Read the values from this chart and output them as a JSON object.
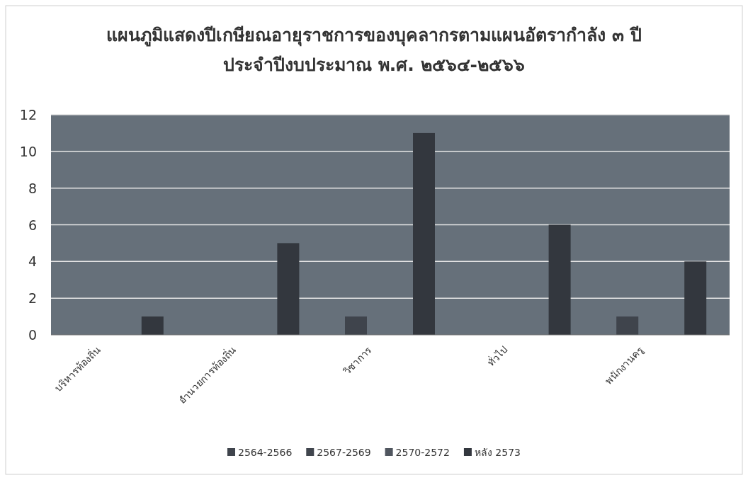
{
  "chart_data": {
    "type": "bar",
    "title": "แผนภูมิแสดงปีเกษียณอายุราชการของบุคลากรตามแผนอัตรากำลัง ๓ ปี ประจำปีงบประมาณ พ.ศ. ๒๕๖๔-๒๕๖๖",
    "categories": [
      "บริหารท้องถิ่น",
      "อำนวยการท้องถิ่น",
      "วิชาการ",
      "ทั่วไป",
      "พนักงานครู"
    ],
    "series": [
      {
        "name": "2564-2566",
        "color": "#3f444c",
        "values": [
          0,
          0,
          1,
          0,
          1
        ]
      },
      {
        "name": "2567-2569",
        "color": "#40454d",
        "values": [
          0,
          0,
          0,
          0,
          0
        ]
      },
      {
        "name": "2570-2572",
        "color": "#50565f",
        "values": [
          0,
          0,
          0,
          0,
          0
        ]
      },
      {
        "name": "หลัง 2573",
        "color": "#33373e",
        "values": [
          1,
          5,
          11,
          6,
          4
        ]
      }
    ],
    "ylim": [
      0,
      12
    ],
    "yticks": [
      0,
      2,
      4,
      6,
      8,
      10,
      12
    ],
    "grid": "y",
    "legend": "bottom"
  }
}
